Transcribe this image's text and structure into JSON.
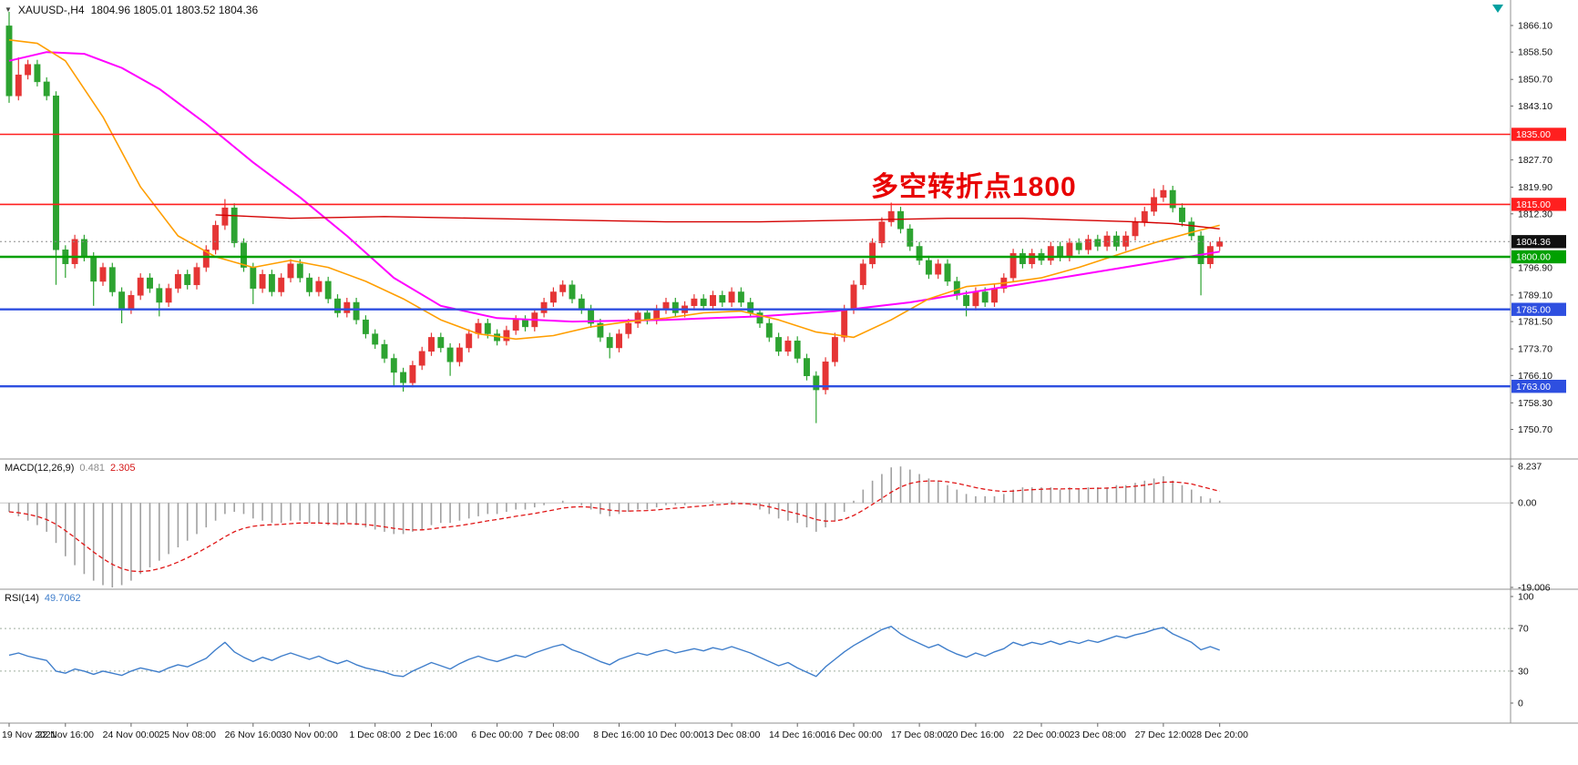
{
  "window": {
    "bg": "#ffffff"
  },
  "symbol_bar": {
    "dropdown_icon": "symbol-dropdown",
    "symbol": "XAUUSD-,H4",
    "ohlc": "1804.96 1805.01 1803.52 1804.36"
  },
  "annotation": {
    "text": "多空转折点1800",
    "color": "#e80000"
  },
  "indicators": {
    "macd_name": "MACD(12,26,9)",
    "macd_main": "0.481",
    "macd_signal": "2.305",
    "rsi_name": "RSI(14)",
    "rsi_value": "49.7062"
  },
  "price_axis": {
    "labels": [
      "1866.10",
      "1858.50",
      "1850.70",
      "1843.10",
      "1827.70",
      "1819.90",
      "1812.30",
      "1796.90",
      "1789.10",
      "1781.50",
      "1773.70",
      "1766.10",
      "1758.30",
      "1750.70"
    ]
  },
  "macd_axis": {
    "labels": [
      "8.237",
      "0.00",
      "-19.006"
    ]
  },
  "rsi_axis": {
    "labels": [
      "100",
      "70",
      "30",
      "0"
    ]
  },
  "time_axis": {
    "labels": [
      "19 Nov 2021",
      "22 Nov 16:00",
      "24 Nov 00:00",
      "25 Nov 08:00",
      "26 Nov 16:00",
      "30 Nov 00:00",
      "1 Dec 08:00",
      "2 Dec 16:00",
      "6 Dec 00:00",
      "7 Dec 08:00",
      "8 Dec 16:00",
      "10 Dec 00:00",
      "13 Dec 08:00",
      "14 Dec 16:00",
      "16 Dec 00:00",
      "17 Dec 08:00",
      "20 Dec 16:00",
      "22 Dec 00:00",
      "23 Dec 08:00",
      "27 Dec 12:00",
      "28 Dec 20:00"
    ]
  },
  "colors": {
    "up": "#e53535",
    "down": "#2da331",
    "hist": "#a0a0a0",
    "signal": "#e01616",
    "rsi_line": "#3f7ecb",
    "level_dotted": "#9fae9f",
    "separator": "#909090",
    "axis_text": "#111111"
  },
  "chart_data": {
    "type": "candlestick",
    "title": "XAUUSD- H4 candlestick chart with MACD(12,26,9) and RSI(14)",
    "price_range_visible": [
      1750.7,
      1866.1
    ],
    "price_lines": [
      {
        "label": "1835.00",
        "price": 1835.0,
        "color": "#ff1f1f",
        "width": 1.6,
        "style": "solid",
        "tag_bg": "#ff1f1f"
      },
      {
        "label": "1815.00",
        "price": 1815.0,
        "color": "#ff1f1f",
        "width": 1.6,
        "style": "solid",
        "tag_bg": "#ff1f1f"
      },
      {
        "label": "1804.36",
        "price": 1804.36,
        "color": "#8c8c8c",
        "width": 1.0,
        "style": "dotted",
        "tag_bg": "#101010"
      },
      {
        "label": "1800.00",
        "price": 1800.0,
        "color": "#00a000",
        "width": 2.4,
        "style": "solid",
        "tag_bg": "#00a000"
      },
      {
        "label": "1785.00",
        "price": 1785.0,
        "color": "#2e4fe0",
        "width": 2.4,
        "style": "solid",
        "tag_bg": "#2e4fe0"
      },
      {
        "label": "1763.00",
        "price": 1763.0,
        "color": "#2e4fe0",
        "width": 2.4,
        "style": "solid",
        "tag_bg": "#2e4fe0"
      }
    ],
    "candles": {
      "first_open": 1866,
      "default_wick": 1.3,
      "closes": [
        1846,
        1852,
        1855,
        1850,
        1846,
        1802,
        1798,
        1805,
        1800,
        1793,
        1797,
        1790,
        1785,
        1789,
        1794,
        1791,
        1787,
        1791,
        1795,
        1792,
        1797,
        1802,
        1809,
        1814,
        1804,
        1797,
        1791,
        1795,
        1790,
        1794,
        1798,
        1794,
        1790,
        1793,
        1788,
        1784,
        1787,
        1782,
        1778,
        1775,
        1771,
        1767,
        1764,
        1769,
        1773,
        1777,
        1774,
        1770,
        1774,
        1778,
        1781,
        1778,
        1776,
        1779,
        1782,
        1780,
        1784,
        1787,
        1790,
        1792,
        1788,
        1785,
        1781,
        1777,
        1774,
        1778,
        1781,
        1784,
        1782,
        1785,
        1787,
        1784,
        1786,
        1788,
        1786,
        1789,
        1787,
        1790,
        1787,
        1784,
        1781,
        1777,
        1773,
        1776,
        1771,
        1766,
        1762,
        1770,
        1777,
        1785,
        1792,
        1798,
        1804,
        1810,
        1813,
        1808,
        1803,
        1799,
        1795,
        1798,
        1793,
        1789,
        1786,
        1790,
        1787,
        1791,
        1794,
        1801,
        1798,
        1801,
        1799,
        1803,
        1800,
        1804,
        1802,
        1805,
        1803,
        1806,
        1803,
        1806,
        1810,
        1813,
        1817,
        1819,
        1814,
        1810,
        1806,
        1798,
        1803,
        1804.36
      ],
      "high_overrides": {
        "0": 1870,
        "1": 1857,
        "23": 1816.5,
        "94": 1815.5,
        "122": 1819.5,
        "123": 1820.5
      },
      "low_overrides": {
        "0": 1844,
        "5": 1792,
        "6": 1794,
        "9": 1786,
        "12": 1781,
        "16": 1783,
        "26": 1786.5,
        "41": 1763,
        "42": 1761.5,
        "47": 1766,
        "64": 1771,
        "86": 1752.5,
        "102": 1783,
        "127": 1789
      }
    },
    "moving_averages": [
      {
        "name": "ma-slow-magenta",
        "color": "#ff00ff",
        "width": 2,
        "points": [
          [
            0,
            1856
          ],
          [
            4,
            1858.5
          ],
          [
            8,
            1858
          ],
          [
            12,
            1854
          ],
          [
            16,
            1848
          ],
          [
            21,
            1838
          ],
          [
            26,
            1827
          ],
          [
            31,
            1817
          ],
          [
            36,
            1806
          ],
          [
            41,
            1794
          ],
          [
            46,
            1786
          ],
          [
            52,
            1782.5
          ],
          [
            60,
            1781.5
          ],
          [
            70,
            1782
          ],
          [
            80,
            1783
          ],
          [
            88,
            1784.5
          ],
          [
            96,
            1787
          ],
          [
            104,
            1790.5
          ],
          [
            112,
            1794
          ],
          [
            120,
            1797.5
          ],
          [
            129,
            1801.5
          ]
        ]
      },
      {
        "name": "ma-fast-orange",
        "color": "#ff9e00",
        "width": 1.6,
        "points": [
          [
            0,
            1862
          ],
          [
            3,
            1861
          ],
          [
            6,
            1856
          ],
          [
            10,
            1840
          ],
          [
            14,
            1820
          ],
          [
            18,
            1806
          ],
          [
            22,
            1800
          ],
          [
            26,
            1797
          ],
          [
            30,
            1799
          ],
          [
            34,
            1797
          ],
          [
            38,
            1793
          ],
          [
            42,
            1788
          ],
          [
            46,
            1782
          ],
          [
            50,
            1778
          ],
          [
            54,
            1776.5
          ],
          [
            58,
            1777.5
          ],
          [
            62,
            1780
          ],
          [
            66,
            1781.5
          ],
          [
            70,
            1782.5
          ],
          [
            74,
            1784
          ],
          [
            78,
            1784.5
          ],
          [
            82,
            1782
          ],
          [
            86,
            1778.5
          ],
          [
            90,
            1777
          ],
          [
            94,
            1782
          ],
          [
            98,
            1788
          ],
          [
            102,
            1791.5
          ],
          [
            106,
            1792.5
          ],
          [
            110,
            1794
          ],
          [
            114,
            1797
          ],
          [
            118,
            1800.5
          ],
          [
            122,
            1804
          ],
          [
            126,
            1807
          ],
          [
            129,
            1809
          ]
        ]
      },
      {
        "name": "ma-mid-red",
        "color": "#d40000",
        "width": 1.4,
        "points": [
          [
            22,
            1812
          ],
          [
            30,
            1811
          ],
          [
            40,
            1811.5
          ],
          [
            50,
            1811
          ],
          [
            60,
            1810.5
          ],
          [
            70,
            1810
          ],
          [
            80,
            1810
          ],
          [
            90,
            1810.5
          ],
          [
            100,
            1811
          ],
          [
            108,
            1811
          ],
          [
            114,
            1810.5
          ],
          [
            120,
            1810
          ],
          [
            124,
            1809.5
          ],
          [
            129,
            1808
          ]
        ]
      }
    ],
    "macd": {
      "signal_period": 9,
      "range": [
        -19.006,
        8.237
      ],
      "histogram": [
        -2,
        -3,
        -4,
        -5,
        -6.5,
        -9,
        -12,
        -14,
        -16,
        -17.5,
        -18.5,
        -19,
        -18.5,
        -17.5,
        -16,
        -14.5,
        -13,
        -11.5,
        -10,
        -8.5,
        -7,
        -5.5,
        -4,
        -2.5,
        -2,
        -2.5,
        -3.5,
        -4,
        -4.5,
        -4.5,
        -4,
        -4,
        -4.5,
        -4.5,
        -5,
        -5,
        -4.5,
        -5,
        -5.5,
        -6,
        -6.5,
        -7,
        -7,
        -6.5,
        -6,
        -5,
        -4.5,
        -4.5,
        -4,
        -3.5,
        -3,
        -2.5,
        -2.5,
        -2,
        -1.5,
        -1.5,
        -1,
        -0.5,
        0,
        0.5,
        0,
        -0.5,
        -1.5,
        -2.5,
        -3,
        -2.5,
        -2,
        -1.5,
        -1.5,
        -1,
        -0.5,
        -0.5,
        -0.5,
        0,
        0,
        0.5,
        0,
        0.5,
        0,
        -0.5,
        -1.5,
        -2.5,
        -3.5,
        -4,
        -4.5,
        -5.5,
        -6.5,
        -5.5,
        -4,
        -2,
        0.5,
        3,
        5,
        6.5,
        8,
        8.2,
        7.5,
        6.5,
        5.5,
        5,
        4,
        3,
        2,
        1.5,
        1.5,
        1.5,
        2,
        3,
        3.5,
        3.5,
        3.5,
        3.5,
        3,
        3.5,
        3,
        3.5,
        3.5,
        3.5,
        4,
        4,
        4.5,
        5,
        5.5,
        6,
        5,
        4,
        3,
        1.5,
        1,
        0.5
      ]
    },
    "rsi": {
      "range": [
        0,
        100
      ],
      "levels": [
        70,
        30
      ],
      "values": [
        45,
        47,
        44,
        42,
        40,
        30,
        28,
        32,
        30,
        27,
        30,
        28,
        26,
        30,
        33,
        31,
        29,
        33,
        36,
        34,
        38,
        42,
        50,
        57,
        48,
        43,
        39,
        43,
        40,
        44,
        47,
        44,
        41,
        44,
        40,
        37,
        40,
        36,
        33,
        31,
        29,
        26,
        25,
        30,
        34,
        38,
        35,
        32,
        37,
        41,
        44,
        41,
        39,
        42,
        45,
        43,
        47,
        50,
        53,
        55,
        50,
        47,
        43,
        39,
        36,
        41,
        44,
        47,
        45,
        48,
        50,
        47,
        49,
        51,
        49,
        52,
        50,
        53,
        50,
        47,
        43,
        39,
        35,
        38,
        33,
        29,
        25,
        34,
        41,
        48,
        54,
        59,
        64,
        69,
        72,
        65,
        60,
        56,
        52,
        55,
        50,
        46,
        43,
        47,
        44,
        48,
        51,
        57,
        54,
        57,
        55,
        58,
        55,
        58,
        56,
        59,
        57,
        60,
        63,
        61,
        64,
        66,
        69,
        71,
        65,
        61,
        57,
        50,
        53,
        49.7
      ]
    }
  }
}
